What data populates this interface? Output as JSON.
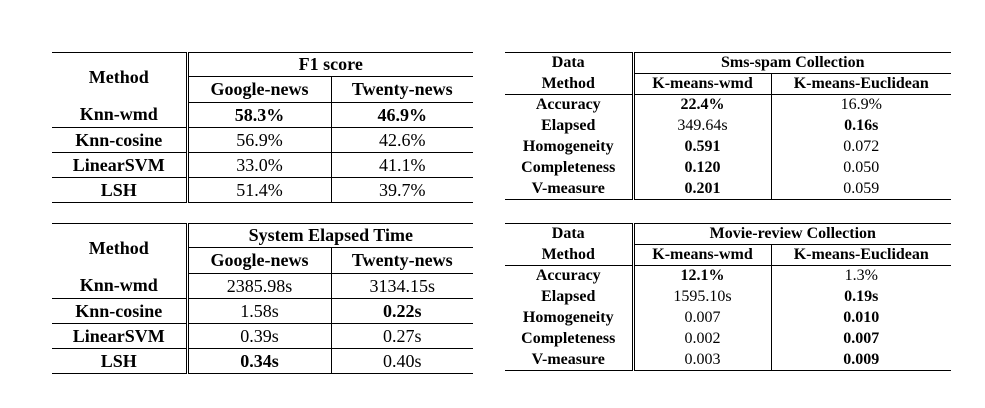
{
  "f1_table": {
    "method_header": "Method",
    "group_header": "F1 score",
    "col_headers": [
      "Google-news",
      "Twenty-news"
    ],
    "rows": [
      {
        "method": "Knn-wmd",
        "values": [
          "58.3%",
          "46.9%"
        ],
        "bold": [
          true,
          true
        ]
      },
      {
        "method": "Knn-cosine",
        "values": [
          "56.9%",
          "42.6%"
        ],
        "bold": [
          false,
          false
        ]
      },
      {
        "method": "LinearSVM",
        "values": [
          "33.0%",
          "41.1%"
        ],
        "bold": [
          false,
          false
        ]
      },
      {
        "method": "LSH",
        "values": [
          "51.4%",
          "39.7%"
        ],
        "bold": [
          false,
          false
        ]
      }
    ]
  },
  "time_table": {
    "method_header": "Method",
    "group_header": "System Elapsed Time",
    "col_headers": [
      "Google-news",
      "Twenty-news"
    ],
    "rows": [
      {
        "method": "Knn-wmd",
        "values": [
          "2385.98s",
          "3134.15s"
        ],
        "bold": [
          false,
          false
        ]
      },
      {
        "method": "Knn-cosine",
        "values": [
          "1.58s",
          "0.22s"
        ],
        "bold": [
          false,
          true
        ]
      },
      {
        "method": "LinearSVM",
        "values": [
          "0.39s",
          "0.27s"
        ],
        "bold": [
          false,
          false
        ]
      },
      {
        "method": "LSH",
        "values": [
          "0.34s",
          "0.40s"
        ],
        "bold": [
          true,
          false
        ]
      }
    ]
  },
  "sms_table": {
    "data_header": "Data",
    "group_header": "Sms-spam Collection",
    "method_header": "Method",
    "col_headers": [
      "K-means-wmd",
      "K-means-Euclidean"
    ],
    "rows": [
      {
        "metric": "Accuracy",
        "values": [
          "22.4%",
          "16.9%"
        ],
        "bold": [
          true,
          false
        ]
      },
      {
        "metric": "Elapsed",
        "values": [
          "349.64s",
          "0.16s"
        ],
        "bold": [
          false,
          true
        ]
      },
      {
        "metric": "Homogeneity",
        "values": [
          "0.591",
          "0.072"
        ],
        "bold": [
          true,
          false
        ]
      },
      {
        "metric": "Completeness",
        "values": [
          "0.120",
          "0.050"
        ],
        "bold": [
          true,
          false
        ]
      },
      {
        "metric": "V-measure",
        "values": [
          "0.201",
          "0.059"
        ],
        "bold": [
          true,
          false
        ]
      }
    ]
  },
  "movie_table": {
    "data_header": "Data",
    "group_header": "Movie-review Collection",
    "method_header": "Method",
    "col_headers": [
      "K-means-wmd",
      "K-means-Euclidean"
    ],
    "rows": [
      {
        "metric": "Accuracy",
        "values": [
          "12.1%",
          "1.3%"
        ],
        "bold": [
          true,
          false
        ]
      },
      {
        "metric": "Elapsed",
        "values": [
          "1595.10s",
          "0.19s"
        ],
        "bold": [
          false,
          true
        ]
      },
      {
        "metric": "Homogeneity",
        "values": [
          "0.007",
          "0.010"
        ],
        "bold": [
          false,
          true
        ]
      },
      {
        "metric": "Completeness",
        "values": [
          "0.002",
          "0.007"
        ],
        "bold": [
          false,
          true
        ]
      },
      {
        "metric": "V-measure",
        "values": [
          "0.003",
          "0.009"
        ],
        "bold": [
          false,
          true
        ]
      }
    ]
  }
}
